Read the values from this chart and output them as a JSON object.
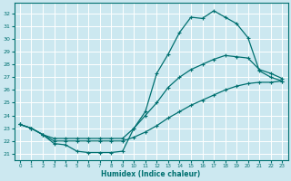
{
  "xlabel": "Humidex (Indice chaleur)",
  "bg_color": "#cce8f0",
  "grid_color": "#ffffff",
  "line_color": "#007070",
  "xlim": [
    -0.5,
    23.5
  ],
  "ylim": [
    20.5,
    32.8
  ],
  "yticks": [
    21,
    22,
    23,
    24,
    25,
    26,
    27,
    28,
    29,
    30,
    31,
    32
  ],
  "xticks": [
    0,
    1,
    2,
    3,
    4,
    5,
    6,
    7,
    8,
    9,
    10,
    11,
    12,
    13,
    14,
    15,
    16,
    17,
    18,
    19,
    20,
    21,
    22,
    23
  ],
  "curve1_x": [
    0,
    1,
    2,
    3,
    4,
    5,
    6,
    7,
    8,
    9,
    10,
    11,
    12,
    13,
    14,
    15,
    16,
    17,
    18,
    19,
    20,
    21,
    22,
    23
  ],
  "curve1_y": [
    23.3,
    23.0,
    22.5,
    21.8,
    21.7,
    21.2,
    21.1,
    21.1,
    21.1,
    21.2,
    23.0,
    24.3,
    27.3,
    28.8,
    30.5,
    31.7,
    31.6,
    32.2,
    31.7,
    31.2,
    30.1,
    27.5,
    27.0,
    26.7
  ],
  "curve2_x": [
    0,
    1,
    2,
    3,
    4,
    5,
    6,
    7,
    8,
    9,
    10,
    11,
    12,
    13,
    14,
    15,
    16,
    17,
    18,
    19,
    20,
    21,
    22,
    23
  ],
  "curve2_y": [
    23.3,
    23.0,
    22.5,
    22.2,
    22.2,
    22.2,
    22.2,
    22.2,
    22.2,
    22.2,
    23.0,
    24.0,
    25.0,
    26.2,
    27.0,
    27.6,
    28.0,
    28.4,
    28.7,
    28.6,
    28.5,
    27.6,
    27.3,
    26.9
  ],
  "curve3_x": [
    0,
    1,
    2,
    3,
    4,
    5,
    6,
    7,
    8,
    9,
    10,
    11,
    12,
    13,
    14,
    15,
    16,
    17,
    18,
    19,
    20,
    21,
    22,
    23
  ],
  "curve3_y": [
    23.3,
    23.0,
    22.5,
    22.0,
    22.0,
    22.0,
    22.0,
    22.0,
    22.0,
    22.0,
    22.3,
    22.7,
    23.2,
    23.8,
    24.3,
    24.8,
    25.2,
    25.6,
    26.0,
    26.3,
    26.5,
    26.6,
    26.6,
    26.7
  ]
}
